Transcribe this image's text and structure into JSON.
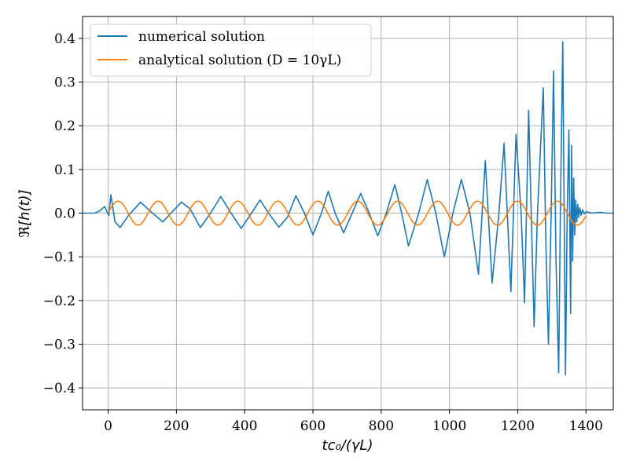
{
  "chart_data": {
    "type": "line",
    "title": "",
    "xlabel": "tc₀/(γL)",
    "ylabel": "ℜ[h(t)]",
    "xlim": [
      -75,
      1480
    ],
    "ylim": [
      -0.45,
      0.45
    ],
    "grid": true,
    "legend_position": "top-left",
    "x_ticks": [
      0,
      200,
      400,
      600,
      800,
      1000,
      1200,
      1400
    ],
    "x_tick_labels": [
      "0",
      "200",
      "400",
      "600",
      "800",
      "1000",
      "1200",
      "1400"
    ],
    "y_ticks": [
      -0.4,
      -0.3,
      -0.2,
      -0.1,
      0.0,
      0.1,
      0.2,
      0.3,
      0.4
    ],
    "y_tick_labels": [
      "−0.4",
      "−0.3",
      "−0.2",
      "−0.1",
      "0.0",
      "0.1",
      "0.2",
      "0.3",
      "0.4"
    ],
    "series": [
      {
        "name": "numerical solution",
        "color": "#1f77b4",
        "x": [
          -75,
          -40,
          -25,
          -10,
          -2,
          2,
          8,
          20,
          35,
          60,
          95,
          130,
          160,
          190,
          215,
          240,
          270,
          300,
          330,
          360,
          390,
          420,
          445,
          470,
          500,
          525,
          550,
          575,
          600,
          625,
          645,
          665,
          690,
          715,
          740,
          765,
          790,
          815,
          840,
          860,
          880,
          910,
          935,
          960,
          985,
          1010,
          1035,
          1060,
          1085,
          1105,
          1125,
          1145,
          1160,
          1180,
          1195,
          1210,
          1220,
          1232,
          1248,
          1258,
          1275,
          1282,
          1290,
          1298,
          1305,
          1312,
          1320,
          1325,
          1332,
          1340,
          1345,
          1350,
          1355,
          1358,
          1361,
          1364,
          1367,
          1370,
          1373,
          1376,
          1379,
          1382,
          1386,
          1390,
          1395,
          1400,
          1420,
          1440,
          1460,
          1480
        ],
        "y": [
          0.0,
          0.0,
          0.005,
          0.015,
          0.0,
          -0.005,
          0.042,
          -0.02,
          -0.033,
          -0.005,
          0.025,
          0.0,
          -0.02,
          0.005,
          0.025,
          0.01,
          -0.033,
          0.0,
          0.038,
          0.0,
          -0.035,
          0.0,
          0.03,
          0.0,
          -0.032,
          -0.01,
          0.04,
          0.0,
          -0.05,
          0.0,
          0.05,
          0.0,
          -0.045,
          0.0,
          0.045,
          0.0,
          -0.052,
          0.0,
          0.065,
          0.0,
          -0.075,
          0.0,
          0.077,
          0.0,
          -0.1,
          0.0,
          0.077,
          0.0,
          -0.14,
          0.12,
          -0.16,
          0.0,
          0.16,
          -0.18,
          0.18,
          0.0,
          -0.205,
          0.235,
          -0.26,
          0.0,
          0.287,
          -0.05,
          -0.3,
          0.0,
          0.325,
          -0.1,
          -0.365,
          0.0,
          0.392,
          -0.37,
          0.0,
          0.19,
          -0.23,
          0.155,
          -0.11,
          0.08,
          -0.05,
          0.03,
          -0.02,
          0.02,
          -0.01,
          0.012,
          -0.005,
          0.008,
          -0.002,
          0.003,
          0.0,
          0.002,
          0.0,
          0.0
        ]
      },
      {
        "name": "analytical solution (D = 10γL)",
        "color": "#ff7f0e",
        "x_start": 0,
        "x_end": 1400,
        "amplitude": 0.0275,
        "period": 117,
        "phase_offset": 0
      }
    ]
  }
}
